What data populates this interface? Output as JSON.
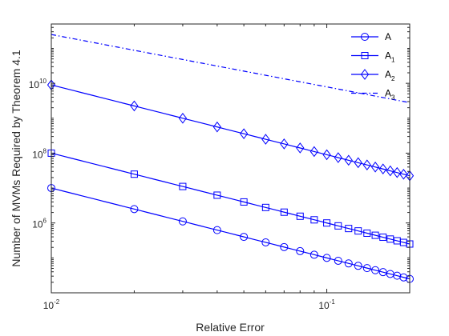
{
  "chart_data": {
    "type": "line",
    "xscale": "log",
    "yscale": "log",
    "xlabel": "Relative Error",
    "ylabel": "Number of MVMs Required by Theorem 4.1",
    "xlim": [
      0.01,
      0.2
    ],
    "ylim": [
      10000,
      500000000000.0
    ],
    "xticks": [
      {
        "value": 0.01,
        "base": "10",
        "exp": "-2"
      },
      {
        "value": 0.1,
        "base": "10",
        "exp": "-1"
      }
    ],
    "yticks": [
      {
        "value": 1000000,
        "base": "10",
        "exp": "6"
      },
      {
        "value": 100000000,
        "base": "10",
        "exp": "8"
      },
      {
        "value": 10000000000,
        "base": "10",
        "exp": "10"
      }
    ],
    "grid": false,
    "legend_position": "top-right",
    "color": "#0000ff",
    "x": [
      0.01,
      0.02,
      0.03,
      0.04,
      0.05,
      0.06,
      0.07,
      0.08,
      0.09,
      0.1,
      0.11,
      0.12,
      0.13,
      0.14,
      0.15,
      0.16,
      0.17,
      0.18,
      0.19,
      0.2
    ],
    "series": [
      {
        "name": "A",
        "sub": "",
        "marker": "circle",
        "line": "solid",
        "coef": 1000,
        "exponent": 2,
        "values": [
          10000000.0,
          2500000.0,
          1110000.0,
          625000.0,
          400000.0,
          278000.0,
          204000.0,
          156000.0,
          123000.0,
          100000.0,
          82600.0,
          69400.0,
          59200.0,
          51000.0,
          44400.0,
          39100.0,
          34600.0,
          30900.0,
          27700.0,
          25000.0
        ]
      },
      {
        "name": "A",
        "sub": "1",
        "marker": "square",
        "line": "solid",
        "coef": 10000,
        "exponent": 2,
        "values": [
          100000000.0,
          25000000.0,
          11100000.0,
          6250000.0,
          4000000.0,
          2780000.0,
          2040000.0,
          1560000.0,
          1230000.0,
          1000000.0,
          826000.0,
          694000.0,
          592000.0,
          510000.0,
          444000.0,
          391000.0,
          346000.0,
          309000.0,
          277000.0,
          250000.0
        ]
      },
      {
        "name": "A",
        "sub": "2",
        "marker": "diamond",
        "line": "solid",
        "coef": 900000,
        "exponent": 2,
        "values": [
          9000000000.0,
          2250000000.0,
          1000000000.0,
          563000000.0,
          360000000.0,
          250000000.0,
          184000000.0,
          141000000.0,
          111000000.0,
          90000000.0,
          74400000.0,
          62500000.0,
          53300000.0,
          45900000.0,
          40000000.0,
          35200000.0,
          31100000.0,
          27800000.0,
          24900000.0,
          22500000.0
        ]
      },
      {
        "name": "A",
        "sub": "3",
        "marker": "none",
        "line": "dashdot",
        "coef": 250000000.0,
        "exponent": 1.5,
        "values": [
          250000000000.0,
          88400000000.0,
          48100000000.0,
          31300000000.0,
          22400000000.0,
          17000000000.0,
          13500000000.0,
          11000000000.0,
          9260000000.0,
          7910000000.0,
          6850000000.0,
          6010000000.0,
          5330000000.0,
          4770000000.0,
          4300000000.0,
          3910000000.0,
          3570000000.0,
          3270000000.0,
          3020000000.0,
          2800000000.0
        ]
      }
    ]
  }
}
